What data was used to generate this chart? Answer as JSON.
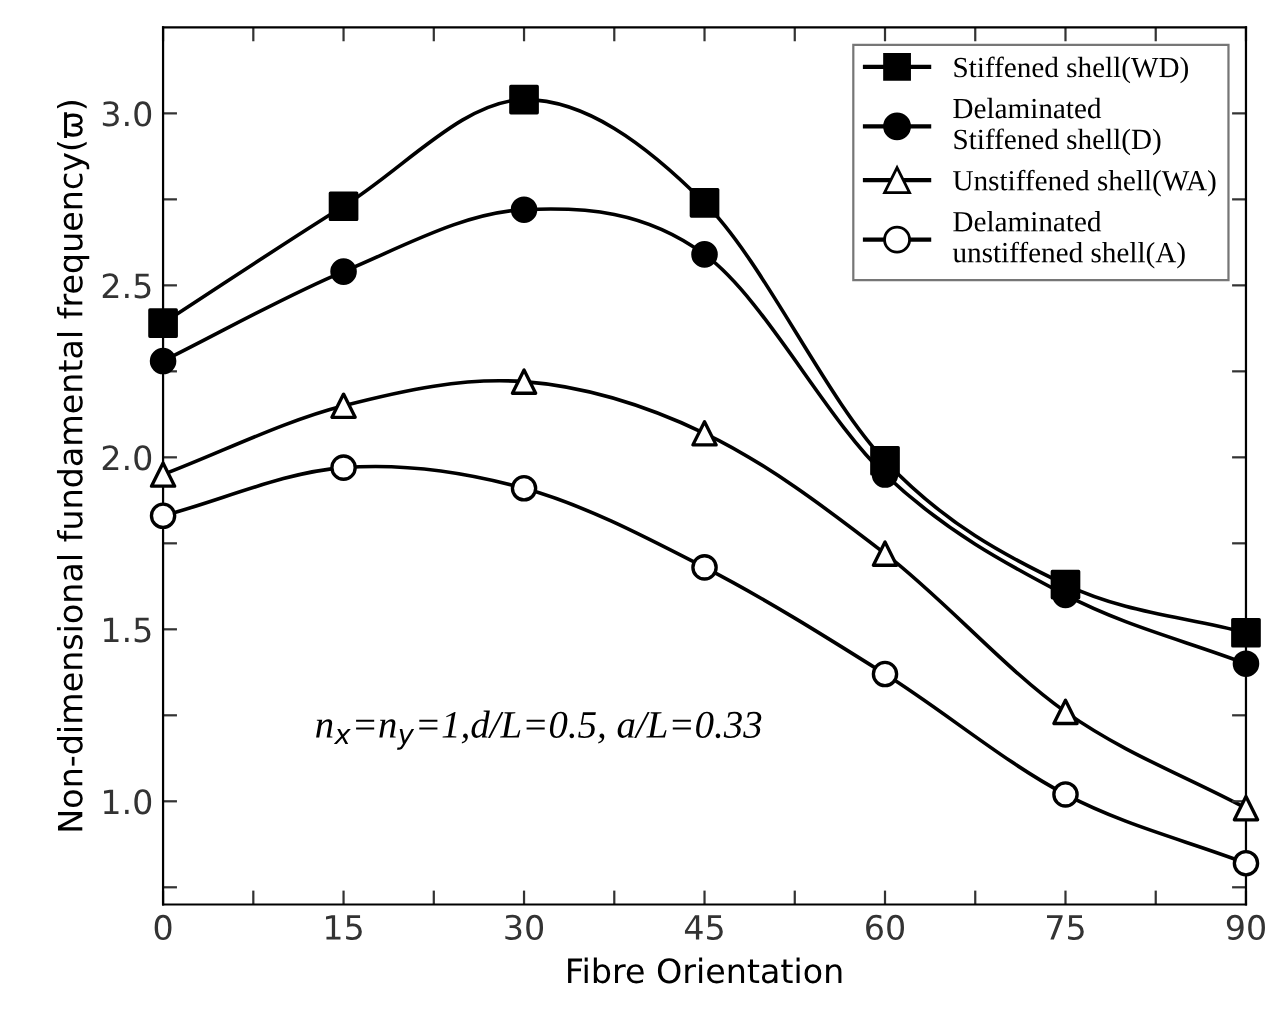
{
  "chart_data": {
    "type": "line",
    "xlabel": "Fibre Orientation",
    "ylabel": "Non-dimensional fundamental frequency(ϖ)",
    "x": [
      0,
      15,
      30,
      45,
      60,
      75,
      90
    ],
    "series": [
      {
        "name": "Stiffened shell(WD)",
        "color": "#000000",
        "marker": "square",
        "colors": [
          "#000000",
          "#000000",
          "#000000",
          "#000000",
          "#000000",
          "#000000",
          "#000000"
        ],
        "values": [
          2.39,
          2.73,
          3.04,
          2.74,
          1.99,
          1.63,
          1.49
        ]
      },
      {
        "name": "Delaminated\nStiffened shell(D)",
        "color": "#000000",
        "marker": "circle",
        "colors": [
          "#000000",
          "#000000",
          "#000000",
          "#000000",
          "#000000",
          "#000000",
          "#000000"
        ],
        "values": [
          2.28,
          2.54,
          2.72,
          2.59,
          1.95,
          1.6,
          1.4
        ]
      },
      {
        "name": "Unstiffened shell(WA)",
        "color": "#000000",
        "marker": "triangle",
        "colors": [
          "#ffffff",
          "#ffffff",
          "#ffffff",
          "#ffffff",
          "#ffffff",
          "#ffffff",
          "#ffffff"
        ],
        "values": [
          1.95,
          2.15,
          2.22,
          2.07,
          1.72,
          1.26,
          0.98
        ]
      },
      {
        "name": "Delaminated\nunstiffened shell(A)",
        "color": "#000000",
        "marker": "circle",
        "colors": [
          "#ffffff",
          "#ffffff",
          "#ffffff",
          "#ffffff",
          "#ffffff",
          "#ffffff",
          "#ffffff"
        ],
        "values": [
          1.83,
          1.97,
          1.91,
          1.68,
          1.37,
          1.02,
          0.82
        ]
      }
    ],
    "xlim": [
      0,
      90
    ],
    "ylim": [
      0.7,
      3.25
    ],
    "xticks": [
      0,
      {
        "value": 7.5,
        "label": null
      },
      15,
      {
        "value": 22.5,
        "label": null
      },
      30,
      {
        "value": 37.5,
        "label": null
      },
      45,
      {
        "value": 52.5,
        "label": null
      },
      60,
      {
        "value": 67.5,
        "label": null
      },
      75,
      {
        "value": 82.5,
        "label": null
      },
      90
    ],
    "yticks": [
      {
        "value": 0.75,
        "label": null
      },
      {
        "value": 1.0,
        "label": "1.0"
      },
      {
        "value": 1.25,
        "label": null
      },
      {
        "value": 1.5,
        "label": "1.5"
      },
      {
        "value": 1.75,
        "label": null
      },
      {
        "value": 2.0,
        "label": "2.0"
      },
      {
        "value": 2.25,
        "label": null
      },
      {
        "value": 2.5,
        "label": "2.5"
      },
      {
        "value": 2.75,
        "label": null
      },
      {
        "value": 3.0,
        "label": "3.0"
      }
    ],
    "annotations": [
      "n$_{x}$=n$_{y}$=1,d/L=0.5, a/L=0.33"
    ],
    "legend": "top right",
    "grid": false,
    "line_style": "solid"
  }
}
